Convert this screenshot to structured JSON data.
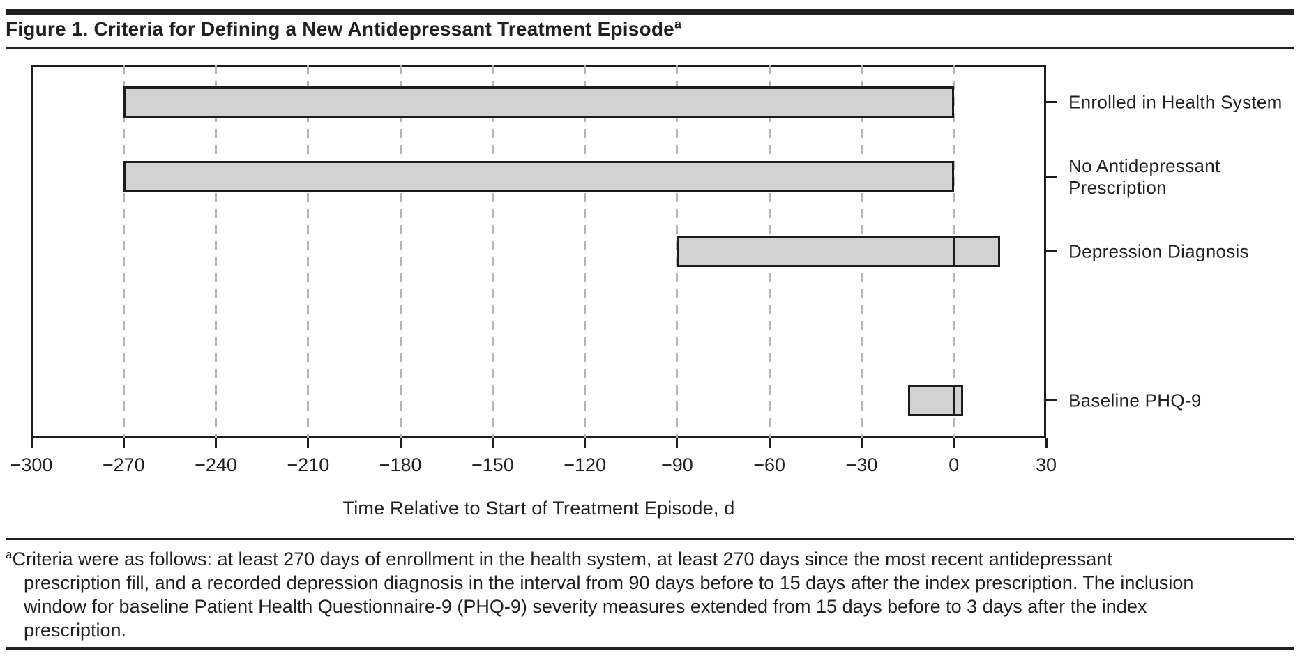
{
  "figure": {
    "title": "Figure 1. Criteria for Defining a New Antidepressant Treatment Episode",
    "title_superscript": "a",
    "footnote_marker": "a",
    "footnote_lines": [
      "Criteria were as follows: at least 270 days of enrollment in the health system, at least 270 days since the most recent antidepressant",
      "prescription fill, and a recorded depression diagnosis in the interval from 90 days before to 15 days after the index prescription. The inclusion",
      "window for baseline Patient Health Questionnaire-9 (PHQ-9) severity measures extended from 15 days before to 3 days after the index",
      "prescription."
    ]
  },
  "chart_data": {
    "type": "bar",
    "orientation": "horizontal-interval",
    "title": "Criteria for Defining a New Antidepressant Treatment Episode",
    "xlabel": "Time Relative to Start of Treatment Episode, d",
    "xlim": [
      -300,
      30
    ],
    "grid": "dashed-vertical",
    "legend": "none",
    "categories": [
      "Enrolled in Health System",
      "No Antidepressant Prescription",
      "Depression Diagnosis",
      "Baseline PHQ-9"
    ],
    "series": [
      {
        "name": "Enrolled in Health System",
        "label_lines": [
          "Enrolled in Health System"
        ],
        "start": -270,
        "end": 0
      },
      {
        "name": "No Antidepressant Prescription",
        "label_lines": [
          "No Antidepressant",
          "Prescription"
        ],
        "start": -270,
        "end": 0
      },
      {
        "name": "Depression Diagnosis",
        "label_lines": [
          "Depression Diagnosis"
        ],
        "start": -90,
        "end": 15,
        "divider_at": 0
      },
      {
        "name": "Baseline PHQ-9",
        "label_lines": [
          "Baseline PHQ-9"
        ],
        "start": -15,
        "end": 3,
        "divider_at": 0
      }
    ],
    "x_ticks": [
      {
        "value": -300,
        "label": "−300"
      },
      {
        "value": -270,
        "label": "−270"
      },
      {
        "value": -240,
        "label": "−240"
      },
      {
        "value": -210,
        "label": "−210"
      },
      {
        "value": -180,
        "label": "−180"
      },
      {
        "value": -150,
        "label": "−150"
      },
      {
        "value": -120,
        "label": "−120"
      },
      {
        "value": -90,
        "label": "−90"
      },
      {
        "value": -60,
        "label": "−60"
      },
      {
        "value": -30,
        "label": "−30"
      },
      {
        "value": 0,
        "label": "0"
      },
      {
        "value": 30,
        "label": "30"
      }
    ],
    "gridlines_at": [
      -270,
      -240,
      -210,
      -180,
      -150,
      -120,
      -90,
      -60,
      -30,
      0
    ],
    "bar_fill": "#d2d2d2",
    "bar_border": "#1c1c1c",
    "gridline_color": "#b4b4b4",
    "ink_color": "#231f20"
  }
}
